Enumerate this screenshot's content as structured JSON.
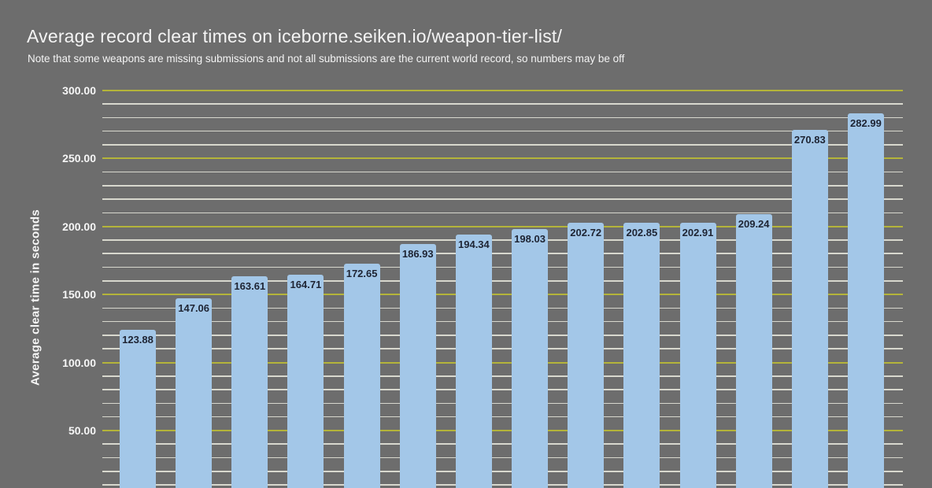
{
  "header": {
    "title": "Average record clear times on iceborne.seiken.io/weapon-tier-list/",
    "subtitle": "Note that some weapons are missing submissions and not all submissions are the current world record, so numbers may be off"
  },
  "chart_data": {
    "type": "bar",
    "title": "Average record clear times on iceborne.seiken.io/weapon-tier-list/",
    "subtitle": "Note that some weapons are missing submissions and not all submissions are the current world record, so numbers may be off",
    "xlabel": "",
    "ylabel": "Average clear time in seconds",
    "values": [
      123.88,
      147.06,
      163.61,
      164.71,
      172.65,
      186.93,
      194.34,
      198.03,
      202.72,
      202.85,
      202.91,
      209.24,
      270.83,
      282.99
    ],
    "bar_labels": [
      "123.88",
      "147.06",
      "163.61",
      "164.71",
      "172.65",
      "186.93",
      "194.34",
      "198.03",
      "202.72",
      "202.85",
      "202.91",
      "209.24",
      "270.83",
      "282.99"
    ],
    "ylim": [
      0,
      300
    ],
    "yticks": [
      {
        "value": 300,
        "label": "300.00"
      },
      {
        "value": 250,
        "label": "250.00"
      },
      {
        "value": 200,
        "label": "200.00"
      },
      {
        "value": 150,
        "label": "150.00"
      },
      {
        "value": 100,
        "label": "100.00"
      },
      {
        "value": 50,
        "label": "50.00"
      }
    ],
    "ytick_minor_step": 10,
    "ytick_major_step": 50,
    "grid": true,
    "legend": "none",
    "x_axis_labels_cut_off": true,
    "colors": {
      "background": "#6d6d6d",
      "bar_fill": "#a3c7e8",
      "bar_label_text": "#1e2433",
      "major_gridline": "#b4b43a",
      "minor_gridline": "#d8d8ce",
      "axis_text": "#f6f6f6",
      "title_text": "#f4f4f4"
    }
  }
}
